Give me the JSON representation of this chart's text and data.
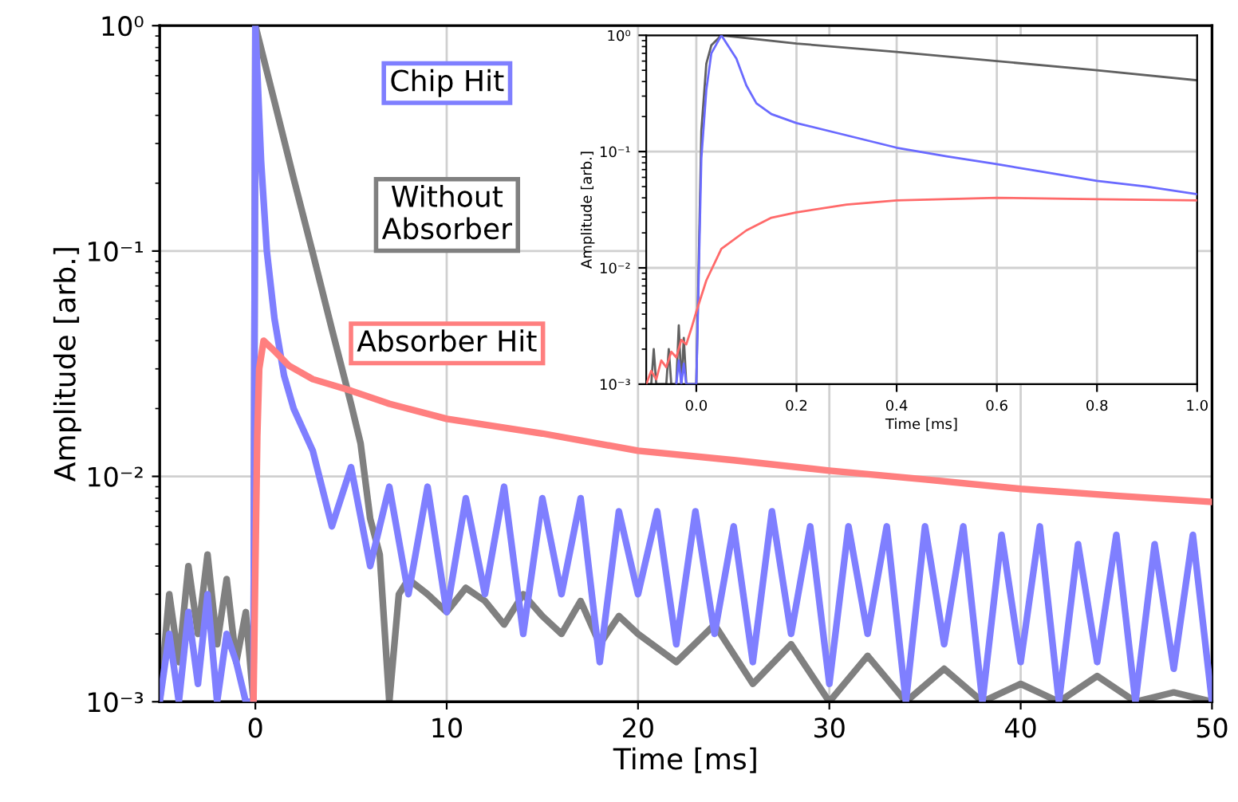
{
  "chart_data": [
    {
      "type": "line",
      "xlabel": "Time [ms]",
      "ylabel": "Amplitude [arb.]",
      "log": "y",
      "grid": true,
      "line_style": "solid",
      "xlim": [
        -5,
        50
      ],
      "xticks": [
        0,
        10,
        20,
        30,
        40,
        50
      ],
      "ylim": [
        0.001,
        1
      ],
      "yticks": [
        {
          "value": 0.001,
          "label": "10⁻³"
        },
        {
          "value": 0.01,
          "label": "10⁻²"
        },
        {
          "value": 0.1,
          "label": "10⁻¹"
        },
        {
          "value": 1,
          "label": "10⁰"
        }
      ],
      "series": [
        {
          "name": "Without Absorber",
          "color": "#808080",
          "x": [
            -5,
            -4.5,
            -4,
            -3.5,
            -3,
            -2.5,
            -2,
            -1.5,
            -1,
            -0.5,
            -0.1,
            0,
            1,
            2,
            3,
            4,
            5,
            5.5,
            6,
            6.5,
            7,
            7.5,
            8,
            9,
            10,
            11,
            12,
            13,
            14,
            15,
            16,
            17,
            18,
            19,
            20,
            22,
            24,
            26,
            28,
            30,
            32,
            34,
            36,
            38,
            40,
            42,
            44,
            46,
            48,
            50
          ],
          "values": [
            0.001,
            0.003,
            0.0015,
            0.004,
            0.002,
            0.0045,
            0.0018,
            0.0035,
            0.0015,
            0.0025,
            0.001,
            1.0,
            0.46,
            0.21,
            0.098,
            0.045,
            0.021,
            0.014,
            0.0065,
            0.0045,
            0.001,
            0.003,
            0.0035,
            0.003,
            0.0025,
            0.0032,
            0.0028,
            0.0022,
            0.003,
            0.0024,
            0.002,
            0.0028,
            0.0018,
            0.0024,
            0.002,
            0.0015,
            0.0022,
            0.0012,
            0.0018,
            0.001,
            0.0016,
            0.001,
            0.0014,
            0.001,
            0.0012,
            0.001,
            0.0013,
            0.001,
            0.0011,
            0.001
          ]
        },
        {
          "name": "Chip Hit",
          "color": "#7f7fff",
          "x": [
            -5,
            -4.5,
            -4,
            -3.5,
            -3,
            -2.5,
            -2,
            -1.5,
            -1,
            -0.5,
            -0.1,
            0,
            0.3,
            0.6,
            1,
            1.5,
            2,
            3,
            4,
            5,
            6,
            7,
            8,
            9,
            10,
            11,
            12,
            13,
            14,
            15,
            16,
            17,
            18,
            19,
            20,
            21,
            22,
            23,
            24,
            25,
            26,
            27,
            28,
            29,
            30,
            31,
            32,
            33,
            34,
            35,
            36,
            37,
            38,
            39,
            40,
            41,
            42,
            43,
            44,
            45,
            46,
            47,
            48,
            49,
            50
          ],
          "values": [
            0.001,
            0.002,
            0.001,
            0.0025,
            0.0012,
            0.003,
            0.001,
            0.002,
            0.0015,
            0.001,
            0.001,
            1.0,
            0.25,
            0.1,
            0.05,
            0.028,
            0.02,
            0.013,
            0.006,
            0.011,
            0.004,
            0.009,
            0.003,
            0.009,
            0.0025,
            0.008,
            0.003,
            0.009,
            0.002,
            0.008,
            0.003,
            0.008,
            0.0015,
            0.007,
            0.003,
            0.007,
            0.0018,
            0.007,
            0.002,
            0.006,
            0.0015,
            0.007,
            0.002,
            0.006,
            0.0012,
            0.006,
            0.002,
            0.006,
            0.001,
            0.006,
            0.0018,
            0.006,
            0.001,
            0.0055,
            0.0015,
            0.006,
            0.001,
            0.005,
            0.0015,
            0.0055,
            0.001,
            0.005,
            0.0014,
            0.0055,
            0.001
          ]
        },
        {
          "name": "Absorber Hit",
          "color": "#ff7f7f",
          "x": [
            -0.1,
            0,
            0.1,
            0.2,
            0.43,
            1,
            1.75,
            3,
            5,
            7,
            10,
            15,
            20,
            25,
            30,
            35,
            40,
            45,
            50
          ],
          "values": [
            0.001,
            0.004,
            0.015,
            0.03,
            0.04,
            0.036,
            0.031,
            0.027,
            0.024,
            0.021,
            0.018,
            0.0155,
            0.013,
            0.0118,
            0.0106,
            0.0097,
            0.0088,
            0.0082,
            0.0077
          ]
        }
      ]
    },
    {
      "type": "line",
      "xlabel": "Time [ms]",
      "ylabel": "Amplitude [arb.]",
      "log": "y",
      "grid": true,
      "line_style": "solid",
      "xlim": [
        -0.1,
        1.0
      ],
      "xticks": [
        {
          "value": 0,
          "label": "0.0"
        },
        0.2,
        0.4,
        0.6,
        0.8,
        {
          "value": 1,
          "label": "1.0"
        }
      ],
      "ylim": [
        0.001,
        1
      ],
      "yticks": [
        {
          "value": 0.001,
          "label": "10⁻³"
        },
        {
          "value": 0.01,
          "label": "10⁻²"
        },
        {
          "value": 0.1,
          "label": "10⁻¹"
        },
        {
          "value": 1,
          "label": "10⁰"
        }
      ],
      "series": [
        {
          "color": "#606060",
          "x": [
            -0.1,
            -0.09,
            -0.085,
            -0.08,
            -0.07,
            -0.06,
            -0.055,
            -0.05,
            -0.04,
            -0.035,
            -0.03,
            -0.025,
            -0.02,
            -0.01,
            0.0,
            0.01,
            0.02,
            0.03,
            0.05,
            0.2,
            0.4,
            0.6,
            0.8,
            1.0
          ],
          "values": [
            0.001,
            0.001,
            0.002,
            0.001,
            0.001,
            0.001,
            0.002,
            0.001,
            0.001,
            0.0032,
            0.001,
            0.0025,
            0.001,
            0.001,
            0.001,
            0.15,
            0.57,
            0.82,
            1.0,
            0.85,
            0.72,
            0.6,
            0.5,
            0.41
          ]
        },
        {
          "color": "#6a6aff",
          "x": [
            -0.04,
            -0.035,
            -0.03,
            -0.025,
            -0.02,
            -0.01,
            0.0,
            0.01,
            0.02,
            0.03,
            0.05,
            0.08,
            0.1,
            0.12,
            0.15,
            0.2,
            0.3,
            0.4,
            0.5,
            0.6,
            0.7,
            0.8,
            0.9,
            1.0
          ],
          "values": [
            0.001,
            0.0016,
            0.001,
            0.0015,
            0.001,
            0.001,
            0.001,
            0.087,
            0.34,
            0.7,
            1.0,
            0.63,
            0.37,
            0.26,
            0.21,
            0.176,
            0.138,
            0.108,
            0.091,
            0.078,
            0.066,
            0.056,
            0.05,
            0.043
          ]
        },
        {
          "color": "#ff6a6a",
          "x": [
            -0.1,
            -0.09,
            -0.08,
            -0.07,
            -0.06,
            -0.05,
            -0.04,
            -0.03,
            -0.02,
            -0.01,
            0.0,
            0.02,
            0.05,
            0.1,
            0.15,
            0.2,
            0.3,
            0.4,
            0.6,
            0.8,
            1.0
          ],
          "values": [
            0.001,
            0.0013,
            0.0011,
            0.0016,
            0.0014,
            0.0019,
            0.0017,
            0.0024,
            0.0022,
            0.003,
            0.0042,
            0.0078,
            0.0146,
            0.021,
            0.027,
            0.03,
            0.035,
            0.038,
            0.04,
            0.039,
            0.038
          ]
        }
      ]
    }
  ]
}
